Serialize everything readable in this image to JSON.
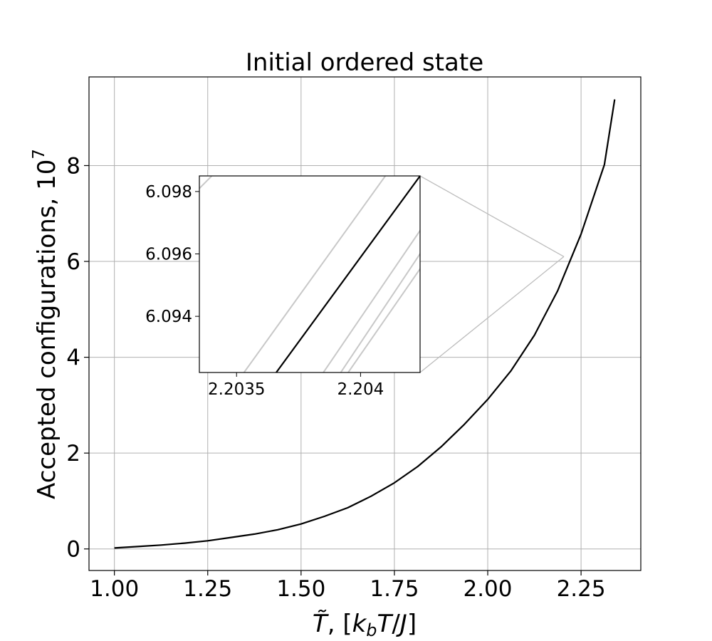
{
  "chart_data": {
    "type": "line",
    "title": "Initial ordered state",
    "xlabel": "T̃, [k_bT/J]",
    "ylabel": "Accepted configurations, 10⁷",
    "xlim": [
      0.932,
      2.41
    ],
    "ylim": [
      -0.45,
      9.85
    ],
    "xticks": [
      1.0,
      1.25,
      1.5,
      1.75,
      2.0,
      2.25
    ],
    "xtick_labels": [
      "1.00",
      "1.25",
      "1.50",
      "1.75",
      "2.00",
      "2.25"
    ],
    "yticks": [
      0,
      2,
      4,
      6,
      8
    ],
    "ytick_labels": [
      "0",
      "2",
      "4",
      "6",
      "8"
    ],
    "grid": true,
    "series": [
      {
        "color": "#000000",
        "x": [
          1.0,
          1.0625,
          1.125,
          1.1875,
          1.25,
          1.3125,
          1.375,
          1.4375,
          1.5,
          1.5625,
          1.625,
          1.6875,
          1.75,
          1.8125,
          1.875,
          1.9375,
          2.0,
          2.0625,
          2.125,
          2.1875,
          2.25,
          2.3125,
          2.34
        ],
        "y": [
          0.02,
          0.05,
          0.08,
          0.12,
          0.17,
          0.24,
          0.31,
          0.4,
          0.52,
          0.68,
          0.86,
          1.1,
          1.38,
          1.72,
          2.13,
          2.6,
          3.12,
          3.72,
          4.46,
          5.39,
          6.57,
          8.02,
          9.38
        ]
      }
    ],
    "inset": {
      "xlim": [
        2.20335,
        2.20424
      ],
      "ylim": [
        6.0922,
        6.0985
      ],
      "xticks": [
        2.2035,
        2.204
      ],
      "xtick_labels": [
        "2.2035",
        "2.204"
      ],
      "yticks": [
        6.094,
        6.096,
        6.098
      ],
      "ytick_labels": [
        "6.094",
        "6.096",
        "6.098"
      ],
      "main_line": {
        "color": "#000000",
        "points": [
          [
            2.20366,
            6.0922
          ],
          [
            2.20424,
            6.0985
          ]
        ]
      },
      "grid_lines": [
        {
          "color": "#c8c8c8",
          "points": [
            [
              2.20335,
              6.0981
            ],
            [
              2.2034,
              6.0985
            ]
          ]
        },
        {
          "color": "#c8c8c8",
          "points": [
            [
              2.20353,
              6.0922
            ],
            [
              2.2041,
              6.0985
            ]
          ]
        },
        {
          "color": "#c8c8c8",
          "points": [
            [
              2.20385,
              6.0922
            ],
            [
              2.20439,
              6.0985
            ]
          ]
        },
        {
          "color": "#c8c8c8",
          "points": [
            [
              2.20392,
              6.0922
            ],
            [
              2.20445,
              6.0985
            ]
          ]
        },
        {
          "color": "#c8c8c8",
          "points": [
            [
              2.20395,
              6.0922
            ],
            [
              2.2045,
              6.0985
            ]
          ]
        }
      ],
      "zoom_target": {
        "x": 2.204,
        "y": 6.1
      }
    }
  }
}
